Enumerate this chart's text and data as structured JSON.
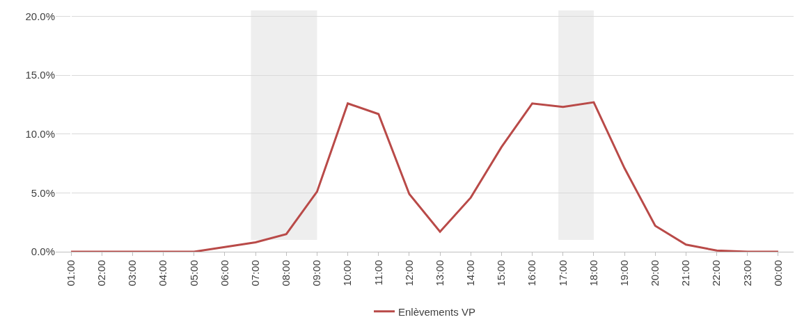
{
  "chart_data": {
    "type": "line",
    "categories": [
      "01:00",
      "02:00",
      "03:00",
      "04:00",
      "05:00",
      "06:00",
      "07:00",
      "08:00",
      "09:00",
      "10:00",
      "11:00",
      "12:00",
      "13:00",
      "14:00",
      "15:00",
      "16:00",
      "17:00",
      "18:00",
      "19:00",
      "20:00",
      "21:00",
      "22:00",
      "23:00",
      "00:00"
    ],
    "series": [
      {
        "name": "Enlèvements VP",
        "color": "#b94a48",
        "values": [
          0,
          0,
          0,
          0,
          0,
          0.4,
          0.8,
          1.5,
          5.1,
          12.6,
          11.7,
          4.9,
          1.7,
          4.6,
          8.9,
          12.6,
          12.3,
          12.7,
          7.1,
          2.2,
          0.6,
          0.1,
          0,
          0
        ]
      }
    ],
    "ylim": [
      0,
      20.5
    ],
    "yticks": [
      {
        "value": 0,
        "label": "0.0%"
      },
      {
        "value": 5,
        "label": "5.0%"
      },
      {
        "value": 10,
        "label": "10.0%"
      },
      {
        "value": 15,
        "label": "15.0%"
      },
      {
        "value": 20,
        "label": "20.0%"
      }
    ],
    "bands": [
      {
        "axis": "x",
        "from": "07:00",
        "to": "09:00",
        "color": "#eeeeee"
      },
      {
        "axis": "x",
        "from": "17:00",
        "to": "18:00",
        "color": "#eeeeee"
      }
    ],
    "grid": "y",
    "legend": "bottom",
    "marker": "none",
    "line_style": "solid"
  }
}
